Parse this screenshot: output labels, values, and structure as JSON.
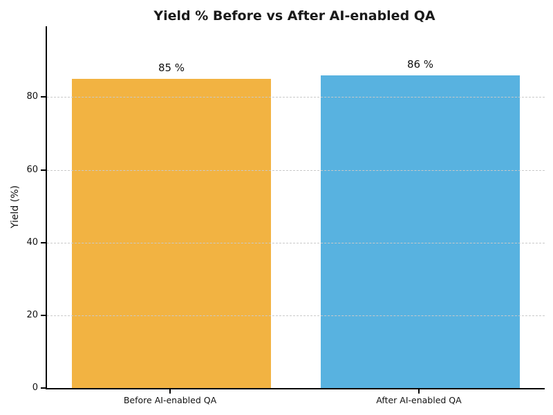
{
  "chart_data": {
    "type": "bar",
    "title": "Yield % Before vs After AI-enabled QA",
    "xlabel": "",
    "ylabel": "Yield (%)",
    "categories": [
      "Before AI-enabled QA",
      "After AI-enabled QA"
    ],
    "values": [
      85,
      86
    ],
    "bar_labels": [
      "85 %",
      "86 %"
    ],
    "bar_colors": [
      "#F2B342",
      "#58B2E0"
    ],
    "yticks": [
      0,
      20,
      40,
      60,
      80
    ],
    "ylim": [
      0,
      99.5
    ],
    "bar_width_fraction": 0.8,
    "grid": "horizontal-dashed",
    "grid_color": "#c9c9c9",
    "legend": "none",
    "spines": [
      "left",
      "bottom"
    ]
  }
}
